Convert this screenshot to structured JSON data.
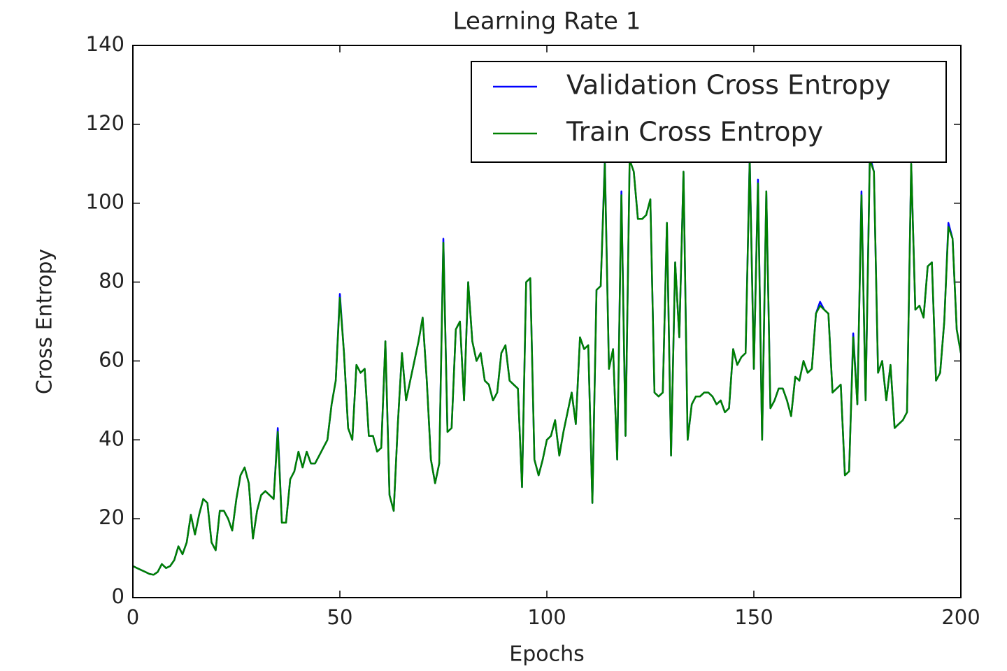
{
  "chart_data": {
    "type": "line",
    "title": "Learning Rate 1",
    "x_label": "Epochs",
    "y_label": "Cross Entropy",
    "xlim": [
      0,
      200
    ],
    "ylim": [
      0,
      140
    ],
    "xticks": [
      0,
      50,
      100,
      150,
      200
    ],
    "yticks": [
      0,
      20,
      40,
      60,
      80,
      100,
      120,
      140
    ],
    "legend": "upper right",
    "grid": false,
    "x": [
      0,
      1,
      2,
      3,
      4,
      5,
      6,
      7,
      8,
      9,
      10,
      11,
      12,
      13,
      14,
      15,
      16,
      17,
      18,
      19,
      20,
      21,
      22,
      23,
      24,
      25,
      26,
      27,
      28,
      29,
      30,
      31,
      32,
      33,
      34,
      35,
      36,
      37,
      38,
      39,
      40,
      41,
      42,
      43,
      44,
      45,
      46,
      47,
      48,
      49,
      50,
      51,
      52,
      53,
      54,
      55,
      56,
      57,
      58,
      59,
      60,
      61,
      62,
      63,
      64,
      65,
      66,
      67,
      68,
      69,
      70,
      71,
      72,
      73,
      74,
      75,
      76,
      77,
      78,
      79,
      80,
      81,
      82,
      83,
      84,
      85,
      86,
      87,
      88,
      89,
      90,
      91,
      92,
      93,
      94,
      95,
      96,
      97,
      98,
      99,
      100,
      101,
      102,
      103,
      104,
      105,
      106,
      107,
      108,
      109,
      110,
      111,
      112,
      113,
      114,
      115,
      116,
      117,
      118,
      119,
      120,
      121,
      122,
      123,
      124,
      125,
      126,
      127,
      128,
      129,
      130,
      131,
      132,
      133,
      134,
      135,
      136,
      137,
      138,
      139,
      140,
      141,
      142,
      143,
      144,
      145,
      146,
      147,
      148,
      149,
      150,
      151,
      152,
      153,
      154,
      155,
      156,
      157,
      158,
      159,
      160,
      161,
      162,
      163,
      164,
      165,
      166,
      167,
      168,
      169,
      170,
      171,
      172,
      173,
      174,
      175,
      176,
      177,
      178,
      179,
      180,
      181,
      182,
      183,
      184,
      185,
      186,
      187,
      188,
      189,
      190,
      191,
      192,
      193,
      194,
      195,
      196,
      197,
      198,
      199,
      200
    ],
    "series": [
      {
        "name": "Validation Cross Entropy",
        "color": "#0000ff",
        "values": [
          8,
          7.5,
          7,
          6.5,
          6,
          5.8,
          6.5,
          8.5,
          7.5,
          8,
          9.5,
          13,
          11,
          14,
          21,
          16,
          21,
          25,
          24,
          14,
          12,
          22,
          22,
          20,
          17,
          25,
          31,
          33,
          29,
          15,
          22,
          26,
          27,
          26,
          25,
          43,
          19,
          19,
          30,
          32,
          37,
          33,
          37,
          34,
          34,
          36,
          38,
          40,
          49,
          55,
          77,
          62,
          43,
          40,
          59,
          57,
          58,
          41,
          41,
          37,
          38,
          65,
          26,
          22,
          44,
          62,
          50,
          55,
          60,
          65,
          71,
          55,
          35,
          29,
          34,
          91,
          42,
          43,
          68,
          70,
          50,
          80,
          65,
          60,
          62,
          55,
          54,
          50,
          52,
          62,
          64,
          55,
          54,
          53,
          28,
          80,
          81,
          35,
          31,
          35,
          40,
          41,
          45,
          36,
          42,
          47,
          52,
          44,
          66,
          63,
          64,
          24,
          78,
          79,
          111,
          58,
          63,
          35,
          103,
          41,
          111,
          108,
          96,
          96,
          97,
          101,
          52,
          51,
          52,
          95,
          36,
          85,
          66,
          108,
          40,
          49,
          51,
          51,
          52,
          52,
          51,
          49,
          50,
          47,
          48,
          63,
          59,
          61,
          62,
          112,
          58,
          106,
          40,
          103,
          48,
          50,
          53,
          53,
          50,
          46,
          56,
          55,
          60,
          57,
          58,
          72,
          75,
          73,
          72,
          52,
          53,
          54,
          31,
          32,
          67,
          49,
          103,
          50,
          112,
          108,
          57,
          60,
          50,
          59,
          43,
          44,
          45,
          47,
          110,
          73,
          74,
          71,
          84,
          85,
          55,
          57,
          70,
          95,
          91,
          68,
          62
        ]
      },
      {
        "name": "Train Cross Entropy",
        "color": "#008000",
        "values": [
          8,
          7.5,
          7,
          6.5,
          6,
          5.8,
          6.5,
          8.5,
          7.5,
          8,
          9.5,
          13,
          11,
          14,
          21,
          16,
          21,
          25,
          24,
          14,
          12,
          22,
          22,
          20,
          17,
          25,
          31,
          33,
          29,
          15,
          22,
          26,
          27,
          26,
          25,
          42,
          19,
          19,
          30,
          32,
          37,
          33,
          37,
          34,
          34,
          36,
          38,
          40,
          49,
          55,
          76,
          62,
          43,
          40,
          59,
          57,
          58,
          41,
          41,
          37,
          38,
          65,
          26,
          22,
          44,
          62,
          50,
          55,
          60,
          65,
          71,
          55,
          35,
          29,
          34,
          90,
          42,
          43,
          68,
          70,
          50,
          80,
          65,
          60,
          62,
          55,
          54,
          50,
          52,
          62,
          64,
          55,
          54,
          53,
          28,
          80,
          81,
          35,
          31,
          35,
          40,
          41,
          45,
          36,
          42,
          47,
          52,
          44,
          66,
          63,
          64,
          24,
          78,
          79,
          110,
          58,
          63,
          35,
          102,
          41,
          111,
          108,
          96,
          96,
          97,
          101,
          52,
          51,
          52,
          95,
          36,
          85,
          66,
          108,
          40,
          49,
          51,
          51,
          52,
          52,
          51,
          49,
          50,
          47,
          48,
          63,
          59,
          61,
          62,
          111,
          58,
          105,
          40,
          103,
          48,
          50,
          53,
          53,
          50,
          46,
          56,
          55,
          60,
          57,
          58,
          72,
          74,
          73,
          72,
          52,
          53,
          54,
          31,
          32,
          66,
          49,
          102,
          50,
          111,
          108,
          57,
          60,
          50,
          59,
          43,
          44,
          45,
          47,
          110,
          73,
          74,
          71,
          84,
          85,
          55,
          57,
          70,
          94,
          91,
          68,
          62
        ]
      }
    ]
  }
}
